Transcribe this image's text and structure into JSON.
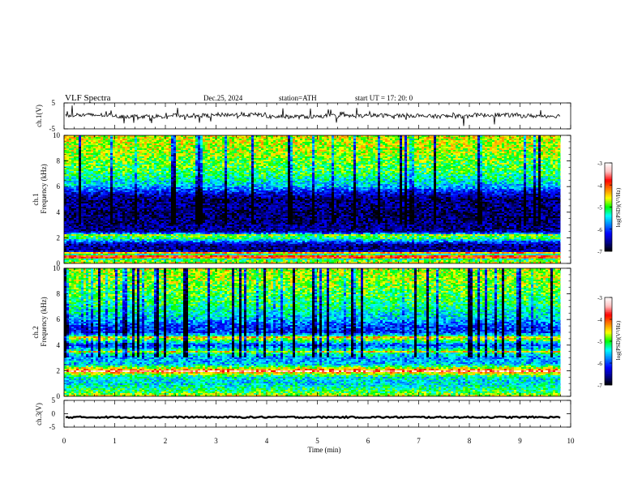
{
  "header": {
    "title": "VLF  Spectra",
    "date": "Dec.25, 2024",
    "station": "station=ATH",
    "start": "start  UT  =    17: 20: 0"
  },
  "colors": {
    "colormap": [
      "#000000",
      "#00008b",
      "#0000ff",
      "#0080ff",
      "#00ffff",
      "#00ff00",
      "#ffff00",
      "#ff8000",
      "#ff0000",
      "#ffc0c0",
      "#ffffff"
    ],
    "trace": "#000000"
  },
  "chart_data": [
    {
      "type": "line",
      "panel": "ch1",
      "ylabel": "ch.1(V)",
      "ylim": [
        -5,
        5
      ],
      "yticks": [
        "5",
        "-5"
      ],
      "xlim": [
        0,
        10
      ],
      "baseline_v": 0.0,
      "description_values": [
        0.2,
        -0.1,
        0.1,
        0.3,
        -0.2,
        0.0,
        0.1,
        -0.1,
        0.2,
        0.0
      ]
    },
    {
      "type": "heatmap",
      "panel": "ch2",
      "ylabel_top": "ch.1",
      "ylabel_bottom": "Frequency  (kHz)",
      "ylim": [
        0,
        10
      ],
      "yticks": [
        "0",
        "2",
        "4",
        "6",
        "8",
        "10"
      ],
      "xlim": [
        0,
        10
      ],
      "colorbar": {
        "label": "log(PSD)(V²/Hz)",
        "range": [
          -7,
          -3
        ],
        "ticks": [
          "-3",
          "-4",
          "-5",
          "-6",
          "-7"
        ]
      },
      "profile_freq_khz": [
        0.0,
        0.3,
        0.6,
        1.0,
        1.5,
        2.0,
        2.2,
        2.5,
        3.0,
        3.5,
        4.0,
        4.5,
        5.0,
        5.5,
        6.0,
        7.0,
        8.0,
        9.0,
        10.0
      ],
      "profile_logpsd": [
        -4.5,
        -5.2,
        -4.8,
        -6.6,
        -6.5,
        -5.0,
        -5.2,
        -6.6,
        -6.6,
        -6.7,
        -6.7,
        -6.6,
        -6.7,
        -6.3,
        -5.6,
        -5.1,
        -4.9,
        -4.7,
        -4.6
      ],
      "lines": [
        {
          "freq_khz": 2.2,
          "logpsd": -4.8
        },
        {
          "freq_khz": 0.8,
          "logpsd": -4.3
        },
        {
          "freq_khz": 0.5,
          "logpsd": -4.0
        }
      ]
    },
    {
      "type": "heatmap",
      "panel": "ch3",
      "ylabel_top": "ch.2",
      "ylabel_bottom": "Frequency  (kHz)",
      "ylim": [
        0,
        10
      ],
      "yticks": [
        "0",
        "2",
        "4",
        "6",
        "8",
        "10"
      ],
      "xlim": [
        0,
        10
      ],
      "colorbar": {
        "label": "log(PSD)(V²/Hz)",
        "range": [
          -7,
          -3
        ],
        "ticks": [
          "-3",
          "-4",
          "-5",
          "-6",
          "-7"
        ]
      },
      "profile_freq_khz": [
        0.0,
        0.3,
        0.6,
        1.0,
        1.5,
        2.0,
        2.5,
        3.0,
        3.5,
        4.0,
        4.5,
        5.0,
        5.5,
        6.0,
        7.0,
        8.0,
        9.0,
        10.0
      ],
      "profile_logpsd": [
        -4.6,
        -5.0,
        -5.2,
        -5.5,
        -5.4,
        -4.0,
        -5.6,
        -5.7,
        -5.0,
        -6.0,
        -4.6,
        -6.1,
        -6.0,
        -5.6,
        -5.2,
        -5.0,
        -4.8,
        -4.7
      ],
      "lines": [
        {
          "freq_khz": 2.0,
          "logpsd": -3.4
        },
        {
          "freq_khz": 3.5,
          "logpsd": -4.5
        },
        {
          "freq_khz": 4.6,
          "logpsd": -4.4
        }
      ]
    },
    {
      "type": "line",
      "panel": "ch3v",
      "ylabel": "ch.3(V)",
      "ylim": [
        -5,
        5
      ],
      "yticks": [
        "5",
        "0",
        "-5"
      ],
      "xlim": [
        0,
        10
      ],
      "baseline_v": -1.3
    }
  ],
  "xaxis": {
    "label": "Time  (min)",
    "ticks": [
      "0",
      "1",
      "2",
      "3",
      "4",
      "5",
      "6",
      "7",
      "8",
      "9",
      "10"
    ],
    "xlim": [
      0,
      10
    ],
    "data_end_min": 9.8
  }
}
